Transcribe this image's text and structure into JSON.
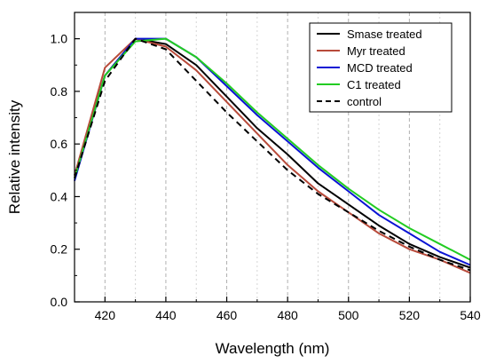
{
  "chart_data": {
    "type": "line",
    "title": "",
    "xlabel": "Wavelength (nm)",
    "ylabel": "Relative intensity",
    "xlim": [
      410,
      540
    ],
    "ylim": [
      0.0,
      1.1
    ],
    "xticks": [
      420,
      440,
      460,
      480,
      500,
      520,
      540
    ],
    "yticks": [
      0.0,
      0.2,
      0.4,
      0.6,
      0.8,
      1.0
    ],
    "grid": "vertical dashed at x ticks",
    "legend_position": "top-right",
    "x": [
      410,
      420,
      430,
      440,
      450,
      460,
      470,
      480,
      490,
      500,
      510,
      520,
      530,
      540
    ],
    "series": [
      {
        "name": "Smase treated",
        "color": "#000000",
        "dash": "solid",
        "values": [
          0.48,
          0.86,
          1.0,
          0.98,
          0.9,
          0.78,
          0.66,
          0.56,
          0.45,
          0.37,
          0.29,
          0.22,
          0.17,
          0.13
        ]
      },
      {
        "name": "Myr treated",
        "color": "#b84a3a",
        "dash": "solid",
        "values": [
          0.48,
          0.89,
          1.0,
          0.97,
          0.88,
          0.76,
          0.64,
          0.52,
          0.42,
          0.34,
          0.26,
          0.2,
          0.16,
          0.11
        ]
      },
      {
        "name": "MCD treated",
        "color": "#0a14d4",
        "dash": "solid",
        "values": [
          0.46,
          0.86,
          1.0,
          1.0,
          0.93,
          0.82,
          0.71,
          0.61,
          0.51,
          0.42,
          0.33,
          0.26,
          0.19,
          0.14
        ]
      },
      {
        "name": "C1 treated",
        "color": "#22cc22",
        "dash": "solid",
        "values": [
          0.47,
          0.86,
          0.99,
          1.0,
          0.93,
          0.83,
          0.72,
          0.62,
          0.52,
          0.43,
          0.35,
          0.28,
          0.22,
          0.16
        ]
      },
      {
        "name": "control",
        "color": "#000000",
        "dash": "dashed",
        "values": [
          0.47,
          0.84,
          1.0,
          0.96,
          0.84,
          0.72,
          0.61,
          0.5,
          0.41,
          0.34,
          0.27,
          0.21,
          0.16,
          0.12
        ]
      }
    ]
  }
}
